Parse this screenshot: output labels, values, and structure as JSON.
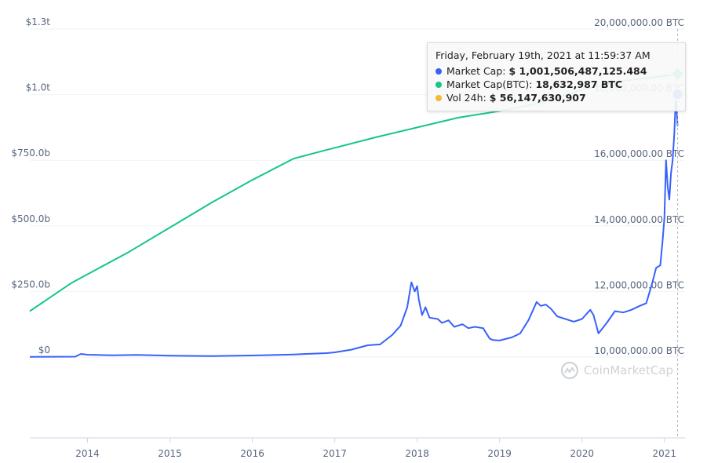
{
  "chart_data": {
    "type": "line",
    "x_ticks": [
      "2014",
      "2015",
      "2016",
      "2017",
      "2018",
      "2019",
      "2020",
      "2021"
    ],
    "y_left_ticks": [
      "$0",
      "$250.0b",
      "$500.0b",
      "$750.0b",
      "$1.0t",
      "$1.3t"
    ],
    "y_right_ticks": [
      "10,000,000.00 BTC",
      "12,000,000.00 BTC",
      "14,000,000.00 BTC",
      "16,000,000.00 BTC",
      "18,000,000.00 BTC",
      "20,000,000.00 BTC"
    ],
    "y_left_range": [
      0,
      1250000000000
    ],
    "y_right_range": [
      10000000,
      20000000
    ],
    "x_range": [
      2013.3,
      2021.25
    ],
    "grid": true,
    "series": [
      {
        "color": "#3861fb",
        "axis": "left",
        "x": [
          2013.3,
          2013.85,
          2013.92,
          2014.0,
          2014.3,
          2014.6,
          2015.0,
          2015.5,
          2016.0,
          2016.5,
          2016.9,
          2017.0,
          2017.2,
          2017.4,
          2017.55,
          2017.7,
          2017.8,
          2017.88,
          2017.93,
          2017.97,
          2018.0,
          2018.02,
          2018.06,
          2018.1,
          2018.15,
          2018.25,
          2018.3,
          2018.38,
          2018.45,
          2018.55,
          2018.62,
          2018.7,
          2018.8,
          2018.88,
          2018.92,
          2019.0,
          2019.15,
          2019.25,
          2019.35,
          2019.45,
          2019.5,
          2019.56,
          2019.62,
          2019.7,
          2019.8,
          2019.9,
          2020.0,
          2020.1,
          2020.14,
          2020.2,
          2020.3,
          2020.4,
          2020.5,
          2020.6,
          2020.7,
          2020.78,
          2020.85,
          2020.9,
          2020.95,
          2020.98,
          2021.0,
          2021.02,
          2021.04,
          2021.06,
          2021.08,
          2021.1,
          2021.12,
          2021.14,
          2021.16
        ],
        "values": [
          1000000000.0,
          1500000000.0,
          12000000000.0,
          9000000000.0,
          7000000000.0,
          8000000000.0,
          5000000000.0,
          4000000000.0,
          6000000000.0,
          10000000000.0,
          15000000000.0,
          18000000000.0,
          28000000000.0,
          45000000000.0,
          48000000000.0,
          85000000000.0,
          120000000000.0,
          190000000000.0,
          285000000000.0,
          250000000000.0,
          270000000000.0,
          220000000000.0,
          160000000000.0,
          190000000000.0,
          150000000000.0,
          145000000000.0,
          130000000000.0,
          140000000000.0,
          115000000000.0,
          125000000000.0,
          110000000000.0,
          115000000000.0,
          110000000000.0,
          70000000000.0,
          65000000000.0,
          63000000000.0,
          75000000000.0,
          90000000000.0,
          140000000000.0,
          210000000000.0,
          195000000000.0,
          200000000000.0,
          185000000000.0,
          155000000000.0,
          145000000000.0,
          135000000000.0,
          145000000000.0,
          180000000000.0,
          160000000000.0,
          90000000000.0,
          130000000000.0,
          175000000000.0,
          170000000000.0,
          180000000000.0,
          195000000000.0,
          205000000000.0,
          280000000000.0,
          340000000000.0,
          350000000000.0,
          450000000000.0,
          530000000000.0,
          750000000000.0,
          650000000000.0,
          600000000000.0,
          700000000000.0,
          750000000000.0,
          850000000000.0,
          1001500000000.0,
          880000000000.0
        ]
      },
      {
        "color": "#16c784",
        "axis": "right",
        "x": [
          2013.3,
          2013.8,
          2014.5,
          2015.0,
          2015.5,
          2016.0,
          2016.5,
          2016.8,
          2017.5,
          2018.0,
          2018.5,
          2019.0,
          2019.5,
          2020.0,
          2020.5,
          2021.0,
          2021.16
        ],
        "values": [
          11400000,
          12250000,
          13200000,
          13950000,
          14700000,
          15400000,
          16050000,
          16250000,
          16700000,
          17000000,
          17300000,
          17500000,
          17750000,
          18150000,
          18420000,
          18570000,
          18632987
        ]
      }
    ]
  },
  "tooltip": {
    "date": "Friday, February 19th, 2021 at 11:59:37 AM",
    "rows": [
      {
        "label": "Market Cap:",
        "value": "$ 1,001,506,487,125.484",
        "color": "#3861fb"
      },
      {
        "label": "Market Cap(BTC):",
        "value": "18,632,987 BTC",
        "color": "#16c784"
      },
      {
        "label": "Vol 24h:",
        "value": "$ 56,147,630,907",
        "color": "#f3ba2f"
      }
    ]
  },
  "watermark": {
    "text": "CoinMarketCap"
  }
}
